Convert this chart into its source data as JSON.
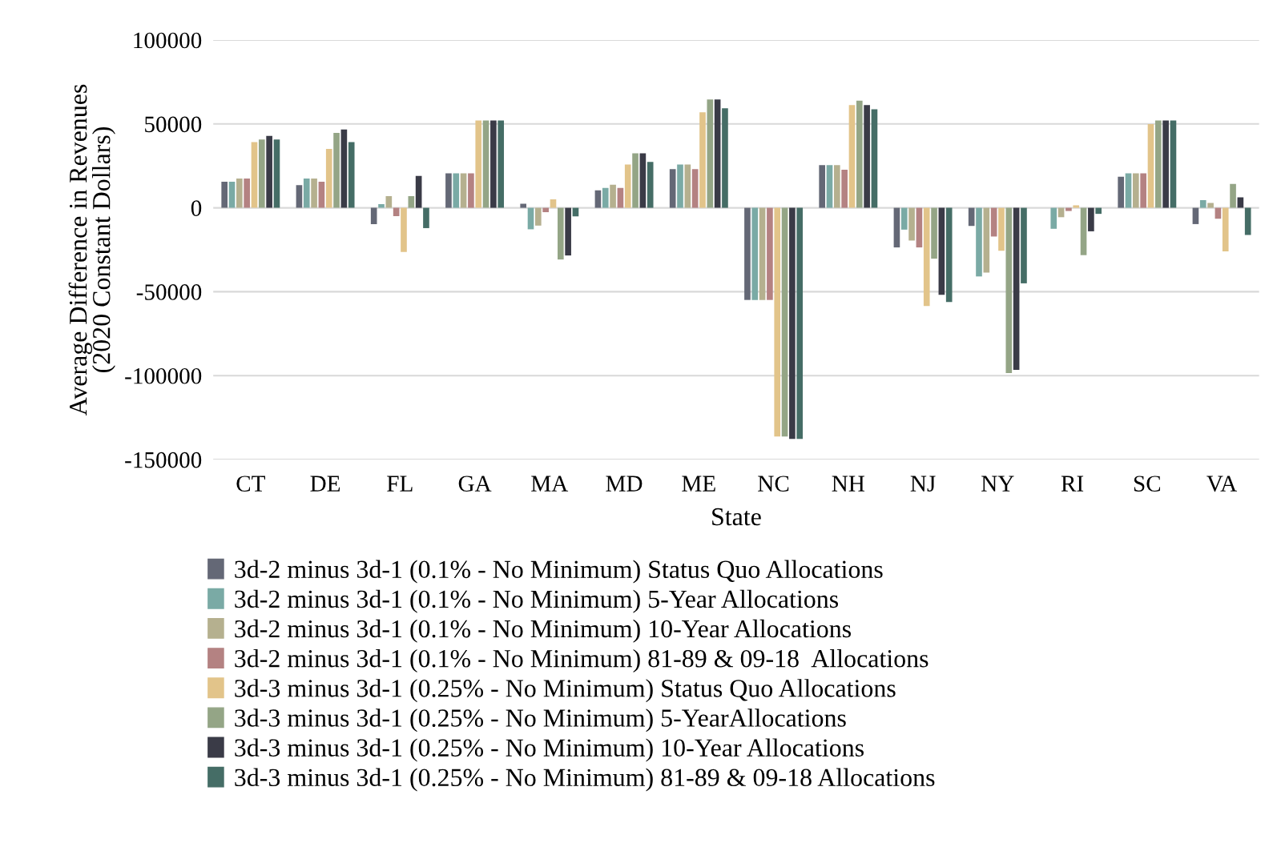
{
  "chart_data": {
    "type": "bar",
    "xlabel": "State",
    "ylabel": "Average Difference in Revenues\n(2020 Constant Dollars)",
    "categories": [
      "CT",
      "DE",
      "FL",
      "GA",
      "MA",
      "MD",
      "ME",
      "NC",
      "NH",
      "NJ",
      "NY",
      "RI",
      "SC",
      "VA"
    ],
    "ylim": [
      -150000,
      100000
    ],
    "yticks": [
      -150000,
      -100000,
      -50000,
      0,
      50000,
      100000
    ],
    "grid": "y",
    "legend": "bottom",
    "series": [
      {
        "name": "3d-2 minus 3d-1 (0.1% - No Minimum) Status Quo Allocations",
        "color": "#646876",
        "values": [
          15600,
          13500,
          -9700,
          20500,
          2400,
          10400,
          23100,
          -54900,
          25500,
          -23600,
          -10800,
          0,
          18500,
          -9700
        ]
      },
      {
        "name": "3d-2 minus 3d-1 (0.1% - No Minimum) 5-Year Allocations",
        "color": "#7aaaa5",
        "values": [
          15600,
          17400,
          2200,
          20500,
          -12800,
          11800,
          25800,
          -54900,
          25500,
          -13000,
          -40900,
          -12500,
          20500,
          4600
        ]
      },
      {
        "name": "3d-2 minus 3d-1 (0.1% - No Minimum) 10-Year Allocations",
        "color": "#b5b08f",
        "values": [
          17400,
          17400,
          7000,
          20500,
          -10600,
          13700,
          25800,
          -54900,
          25500,
          -19500,
          -38600,
          -5600,
          20500,
          2900
        ]
      },
      {
        "name": "3d-2 minus 3d-1 (0.1% - No Minimum) 81-89 & 09-18  Allocations",
        "color": "#b48282",
        "values": [
          17400,
          15600,
          -5000,
          20500,
          -2600,
          11800,
          23100,
          -54900,
          22700,
          -23600,
          -17100,
          -1900,
          20500,
          -6500
        ]
      },
      {
        "name": "3d-3 minus 3d-1 (0.25% - No Minimum) Status Quo Allocations",
        "color": "#e2c48a",
        "values": [
          39200,
          35100,
          -26300,
          52000,
          5100,
          25800,
          56900,
          -136300,
          61200,
          -58500,
          -25600,
          1500,
          49900,
          -26000
        ]
      },
      {
        "name": "3d-3 minus 3d-1 (0.25% - No Minimum) 5-YearAllocations",
        "color": "#94a586",
        "values": [
          40700,
          44600,
          7000,
          52000,
          -30800,
          32500,
          64600,
          -136300,
          63800,
          -30300,
          -98500,
          -28200,
          52000,
          14200
        ]
      },
      {
        "name": "3d-3 minus 3d-1 (0.25% - No Minimum) 10-Year Allocations",
        "color": "#3a3b47",
        "values": [
          42800,
          46700,
          19000,
          52000,
          -28400,
          32500,
          64600,
          -137700,
          61200,
          -51800,
          -96600,
          -14000,
          52000,
          6300
        ]
      },
      {
        "name": "3d-3 minus 3d-1 (0.25% - No Minimum) 81-89 & 09-18 Allocations",
        "color": "#456d66",
        "values": [
          40700,
          39200,
          -12100,
          52000,
          -5100,
          27400,
          59300,
          -137700,
          58700,
          -56100,
          -45000,
          -3600,
          52000,
          -16200
        ]
      }
    ]
  }
}
